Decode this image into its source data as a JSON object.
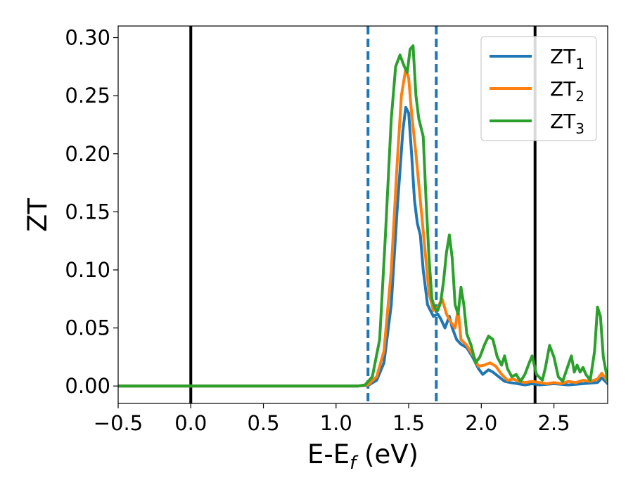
{
  "chart_data": {
    "type": "line",
    "title": "",
    "xlabel": "E-E",
    "xlabel_sub": "f",
    "xlabel_unit": " (eV)",
    "ylabel": "ZT",
    "xlim": [
      -0.5,
      2.87
    ],
    "ylim": [
      -0.015,
      0.31
    ],
    "xticks": [
      -0.5,
      0.0,
      0.5,
      1.0,
      1.5,
      2.0,
      2.5
    ],
    "xtick_labels": [
      "−0.5",
      "0.0",
      "0.5",
      "1.0",
      "1.5",
      "2.0",
      "2.5"
    ],
    "yticks": [
      0.0,
      0.05,
      0.1,
      0.15,
      0.2,
      0.25,
      0.3
    ],
    "ytick_labels": [
      "0.00",
      "0.05",
      "0.10",
      "0.15",
      "0.20",
      "0.25",
      "0.30"
    ],
    "legend_position": "top-right",
    "vlines": [
      {
        "x": 0.0,
        "style": "solid",
        "color": "#000000"
      },
      {
        "x": 2.37,
        "style": "solid",
        "color": "#000000"
      },
      {
        "x": 1.22,
        "style": "dashed",
        "color": "#1f77b4"
      },
      {
        "x": 1.69,
        "style": "dashed",
        "color": "#1f77b4"
      }
    ],
    "series": [
      {
        "name": "ZT",
        "name_sub": "1",
        "color": "#1f77b4",
        "points": [
          [
            -0.5,
            0
          ],
          [
            1.15,
            0
          ],
          [
            1.22,
            0.0005
          ],
          [
            1.28,
            0.005
          ],
          [
            1.33,
            0.02
          ],
          [
            1.38,
            0.07
          ],
          [
            1.42,
            0.15
          ],
          [
            1.46,
            0.22
          ],
          [
            1.48,
            0.24
          ],
          [
            1.5,
            0.235
          ],
          [
            1.52,
            0.2
          ],
          [
            1.54,
            0.16
          ],
          [
            1.56,
            0.14
          ],
          [
            1.58,
            0.13
          ],
          [
            1.6,
            0.1
          ],
          [
            1.63,
            0.07
          ],
          [
            1.67,
            0.06
          ],
          [
            1.7,
            0.062
          ],
          [
            1.72,
            0.058
          ],
          [
            1.75,
            0.05
          ],
          [
            1.78,
            0.06
          ],
          [
            1.8,
            0.05
          ],
          [
            1.83,
            0.04
          ],
          [
            1.86,
            0.036
          ],
          [
            1.9,
            0.033
          ],
          [
            1.94,
            0.025
          ],
          [
            1.98,
            0.015
          ],
          [
            2.01,
            0.01
          ],
          [
            2.05,
            0.014
          ],
          [
            2.08,
            0.012
          ],
          [
            2.12,
            0.008
          ],
          [
            2.16,
            0.004
          ],
          [
            2.2,
            0.003
          ],
          [
            2.25,
            0.002
          ],
          [
            2.3,
            0.001
          ],
          [
            2.35,
            0.002
          ],
          [
            2.4,
            0.001
          ],
          [
            2.5,
            0.002
          ],
          [
            2.6,
            0.001
          ],
          [
            2.7,
            0.002
          ],
          [
            2.8,
            0.003
          ],
          [
            2.83,
            0.007
          ],
          [
            2.87,
            0.002
          ]
        ]
      },
      {
        "name": "ZT",
        "name_sub": "2",
        "color": "#ff7f0e",
        "points": [
          [
            -0.5,
            0
          ],
          [
            1.15,
            0
          ],
          [
            1.22,
            0.001
          ],
          [
            1.28,
            0.008
          ],
          [
            1.33,
            0.03
          ],
          [
            1.38,
            0.1
          ],
          [
            1.42,
            0.19
          ],
          [
            1.45,
            0.25
          ],
          [
            1.48,
            0.273
          ],
          [
            1.5,
            0.265
          ],
          [
            1.52,
            0.235
          ],
          [
            1.55,
            0.2
          ],
          [
            1.58,
            0.16
          ],
          [
            1.61,
            0.12
          ],
          [
            1.64,
            0.08
          ],
          [
            1.67,
            0.065
          ],
          [
            1.7,
            0.068
          ],
          [
            1.73,
            0.075
          ],
          [
            1.76,
            0.062
          ],
          [
            1.79,
            0.055
          ],
          [
            1.82,
            0.05
          ],
          [
            1.84,
            0.066
          ],
          [
            1.86,
            0.04
          ],
          [
            1.9,
            0.035
          ],
          [
            1.95,
            0.025
          ],
          [
            1.98,
            0.017
          ],
          [
            2.02,
            0.018
          ],
          [
            2.06,
            0.02
          ],
          [
            2.1,
            0.017
          ],
          [
            2.14,
            0.01
          ],
          [
            2.18,
            0.005
          ],
          [
            2.22,
            0.006
          ],
          [
            2.26,
            0.004
          ],
          [
            2.3,
            0.003
          ],
          [
            2.35,
            0.004
          ],
          [
            2.4,
            0.003
          ],
          [
            2.45,
            0.002
          ],
          [
            2.5,
            0.003
          ],
          [
            2.55,
            0.002
          ],
          [
            2.6,
            0.004
          ],
          [
            2.65,
            0.003
          ],
          [
            2.7,
            0.005
          ],
          [
            2.75,
            0.004
          ],
          [
            2.8,
            0.006
          ],
          [
            2.83,
            0.011
          ],
          [
            2.87,
            0.004
          ]
        ]
      },
      {
        "name": "ZT",
        "name_sub": "3",
        "color": "#2ca02c",
        "points": [
          [
            -0.5,
            0
          ],
          [
            1.15,
            0
          ],
          [
            1.2,
            0.001
          ],
          [
            1.25,
            0.008
          ],
          [
            1.3,
            0.04
          ],
          [
            1.34,
            0.13
          ],
          [
            1.38,
            0.23
          ],
          [
            1.41,
            0.275
          ],
          [
            1.44,
            0.285
          ],
          [
            1.47,
            0.275
          ],
          [
            1.49,
            0.27
          ],
          [
            1.51,
            0.29
          ],
          [
            1.53,
            0.293
          ],
          [
            1.55,
            0.25
          ],
          [
            1.57,
            0.23
          ],
          [
            1.6,
            0.215
          ],
          [
            1.62,
            0.16
          ],
          [
            1.64,
            0.11
          ],
          [
            1.66,
            0.075
          ],
          [
            1.68,
            0.067
          ],
          [
            1.7,
            0.065
          ],
          [
            1.72,
            0.072
          ],
          [
            1.74,
            0.09
          ],
          [
            1.76,
            0.115
          ],
          [
            1.78,
            0.13
          ],
          [
            1.8,
            0.11
          ],
          [
            1.82,
            0.07
          ],
          [
            1.84,
            0.062
          ],
          [
            1.86,
            0.085
          ],
          [
            1.88,
            0.07
          ],
          [
            1.9,
            0.045
          ],
          [
            1.93,
            0.035
          ],
          [
            1.96,
            0.02
          ],
          [
            1.99,
            0.025
          ],
          [
            2.02,
            0.035
          ],
          [
            2.05,
            0.043
          ],
          [
            2.08,
            0.04
          ],
          [
            2.11,
            0.025
          ],
          [
            2.14,
            0.018
          ],
          [
            2.16,
            0.026
          ],
          [
            2.18,
            0.015
          ],
          [
            2.21,
            0.008
          ],
          [
            2.24,
            0.01
          ],
          [
            2.27,
            0.004
          ],
          [
            2.3,
            0.01
          ],
          [
            2.33,
            0.02
          ],
          [
            2.35,
            0.026
          ],
          [
            2.38,
            0.01
          ],
          [
            2.42,
            0.005
          ],
          [
            2.44,
            0.015
          ],
          [
            2.47,
            0.035
          ],
          [
            2.5,
            0.025
          ],
          [
            2.53,
            0.008
          ],
          [
            2.56,
            0.004
          ],
          [
            2.59,
            0.015
          ],
          [
            2.62,
            0.026
          ],
          [
            2.64,
            0.012
          ],
          [
            2.66,
            0.018
          ],
          [
            2.68,
            0.012
          ],
          [
            2.7,
            0.016
          ],
          [
            2.72,
            0.01
          ],
          [
            2.75,
            0.005
          ],
          [
            2.78,
            0.03
          ],
          [
            2.8,
            0.068
          ],
          [
            2.82,
            0.06
          ],
          [
            2.84,
            0.025
          ],
          [
            2.87,
            0.005
          ]
        ]
      }
    ]
  }
}
